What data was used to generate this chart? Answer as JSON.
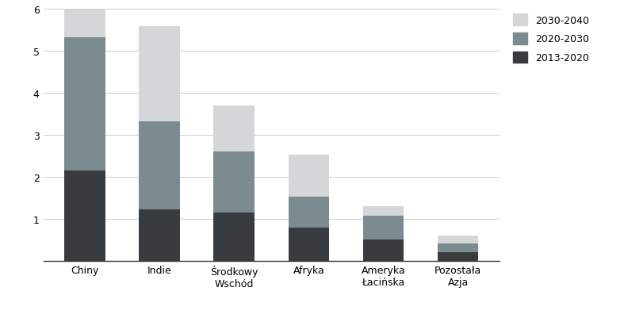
{
  "categories": [
    "Chiny",
    "Indie",
    "Środkowy\nWschód",
    "Afryka",
    "Ameryka\nŁacińska",
    "Pozostała\nAzja"
  ],
  "series": {
    "2013-2020": [
      2.15,
      1.22,
      1.15,
      0.78,
      0.5,
      0.2
    ],
    "2020-2030": [
      3.18,
      2.1,
      1.45,
      0.75,
      0.57,
      0.2
    ],
    "2030-2040": [
      0.67,
      2.27,
      1.1,
      1.0,
      0.23,
      0.2
    ]
  },
  "colors": {
    "2013-2020": "#383c3e",
    "2020-2030": "#7b8b8f",
    "2030-2040": "#d4d6d7"
  },
  "ylim": [
    0,
    6
  ],
  "yticks": [
    1,
    2,
    3,
    4,
    5,
    6
  ],
  "legend_labels": [
    "2030-2040",
    "2020-2030",
    "2013-2020"
  ],
  "bar_width": 0.55,
  "background_color": "#ffffff",
  "figsize": [
    7.87,
    4.02
  ],
  "dpi": 100
}
